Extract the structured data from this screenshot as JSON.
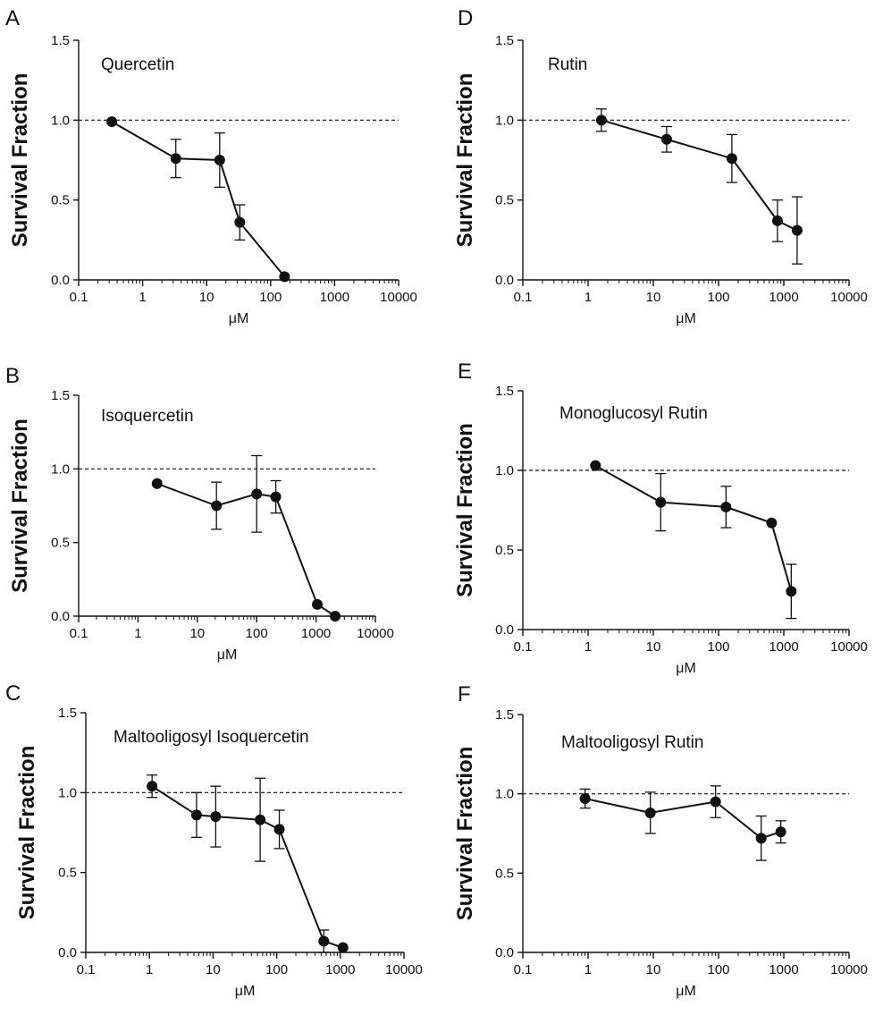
{
  "chart_data": [
    {
      "panel": "A",
      "type": "line",
      "title": "Quercetin",
      "xlabel": "μM",
      "ylabel": "Survival Fraction",
      "xscale": "log",
      "xlim": [
        0.1,
        10000
      ],
      "ylim": [
        0,
        1.5
      ],
      "xticks": [
        "0.1",
        "1",
        "10",
        "100",
        "1000",
        "10000"
      ],
      "yticks": [
        "0.0",
        "0.5",
        "1.0",
        "1.5"
      ],
      "reference_line": 1.0,
      "x": [
        0.33,
        3.3,
        16,
        33,
        165
      ],
      "y": [
        0.99,
        0.76,
        0.75,
        0.36,
        0.02
      ],
      "error": [
        0,
        0.12,
        0.17,
        0.11,
        0
      ]
    },
    {
      "panel": "B",
      "type": "line",
      "title": "Isoquercetin",
      "xlabel": "μM",
      "ylabel": "Survival Fraction",
      "xscale": "log",
      "xlim": [
        0.1,
        10000
      ],
      "ylim": [
        0,
        1.5
      ],
      "xticks": [
        "0.1",
        "1",
        "10",
        "100",
        "1000",
        "10000"
      ],
      "yticks": [
        "0.0",
        "0.5",
        "1.0",
        "1.5"
      ],
      "reference_line": 1.0,
      "x": [
        2.1,
        21,
        100,
        210,
        1050,
        2100
      ],
      "y": [
        0.9,
        0.75,
        0.83,
        0.81,
        0.08,
        0.0
      ],
      "error": [
        0,
        0.16,
        0.26,
        0.11,
        0,
        0
      ]
    },
    {
      "panel": "C",
      "type": "line",
      "title": "Maltooligosyl Isoquercetin",
      "xlabel": "μM",
      "ylabel": "Survival Fraction",
      "xscale": "log",
      "xlim": [
        0.1,
        10000
      ],
      "ylim": [
        0,
        1.5
      ],
      "xticks": [
        "0.1",
        "1",
        "10",
        "100",
        "1000",
        "10000"
      ],
      "yticks": [
        "0.0",
        "0.5",
        "1.0",
        "1.5"
      ],
      "reference_line": 1.0,
      "x": [
        1.1,
        5.5,
        11,
        55,
        110,
        550,
        1100
      ],
      "y": [
        1.04,
        0.86,
        0.85,
        0.83,
        0.77,
        0.07,
        0.03
      ],
      "error": [
        0.07,
        0.14,
        0.19,
        0.26,
        0.12,
        0.07,
        0
      ]
    },
    {
      "panel": "D",
      "type": "line",
      "title": "Rutin",
      "xlabel": "μM",
      "ylabel": "Survival Fraction",
      "xscale": "log",
      "xlim": [
        0.1,
        10000
      ],
      "ylim": [
        0,
        1.5
      ],
      "xticks": [
        "0.1",
        "1",
        "10",
        "100",
        "1000",
        "10000"
      ],
      "yticks": [
        "0.0",
        "0.5",
        "1.0",
        "1.5"
      ],
      "reference_line": 1.0,
      "x": [
        1.6,
        16,
        160,
        800,
        1600
      ],
      "y": [
        1.0,
        0.88,
        0.76,
        0.37,
        0.31
      ],
      "error": [
        0.07,
        0.08,
        0.15,
        0.13,
        0.21
      ]
    },
    {
      "panel": "E",
      "type": "line",
      "title": "Monoglucosyl Rutin",
      "xlabel": "μM",
      "ylabel": "Survival Fraction",
      "xscale": "log",
      "xlim": [
        0.1,
        10000
      ],
      "ylim": [
        0,
        1.5
      ],
      "xticks": [
        "0.1",
        "1",
        "10",
        "100",
        "1000",
        "10000"
      ],
      "yticks": [
        "0.0",
        "0.5",
        "1.0",
        "1.5"
      ],
      "reference_line": 1.0,
      "x": [
        1.3,
        13,
        130,
        650,
        1300
      ],
      "y": [
        1.03,
        0.8,
        0.77,
        0.67,
        0.24
      ],
      "error": [
        0,
        0.18,
        0.13,
        0,
        0.17
      ]
    },
    {
      "panel": "F",
      "type": "line",
      "title": "Maltooligosyl Rutin",
      "xlabel": "μM",
      "ylabel": "Survival Fraction",
      "xscale": "log",
      "xlim": [
        0.1,
        10000
      ],
      "ylim": [
        0,
        1.5
      ],
      "xticks": [
        "0.1",
        "1",
        "10",
        "100",
        "1000",
        "10000"
      ],
      "yticks": [
        "0.0",
        "0.5",
        "1.0",
        "1.5"
      ],
      "reference_line": 1.0,
      "x": [
        0.9,
        9,
        90,
        450,
        900
      ],
      "y": [
        0.97,
        0.88,
        0.95,
        0.72,
        0.76
      ],
      "error": [
        0.06,
        0.13,
        0.1,
        0.14,
        0.07
      ]
    }
  ]
}
